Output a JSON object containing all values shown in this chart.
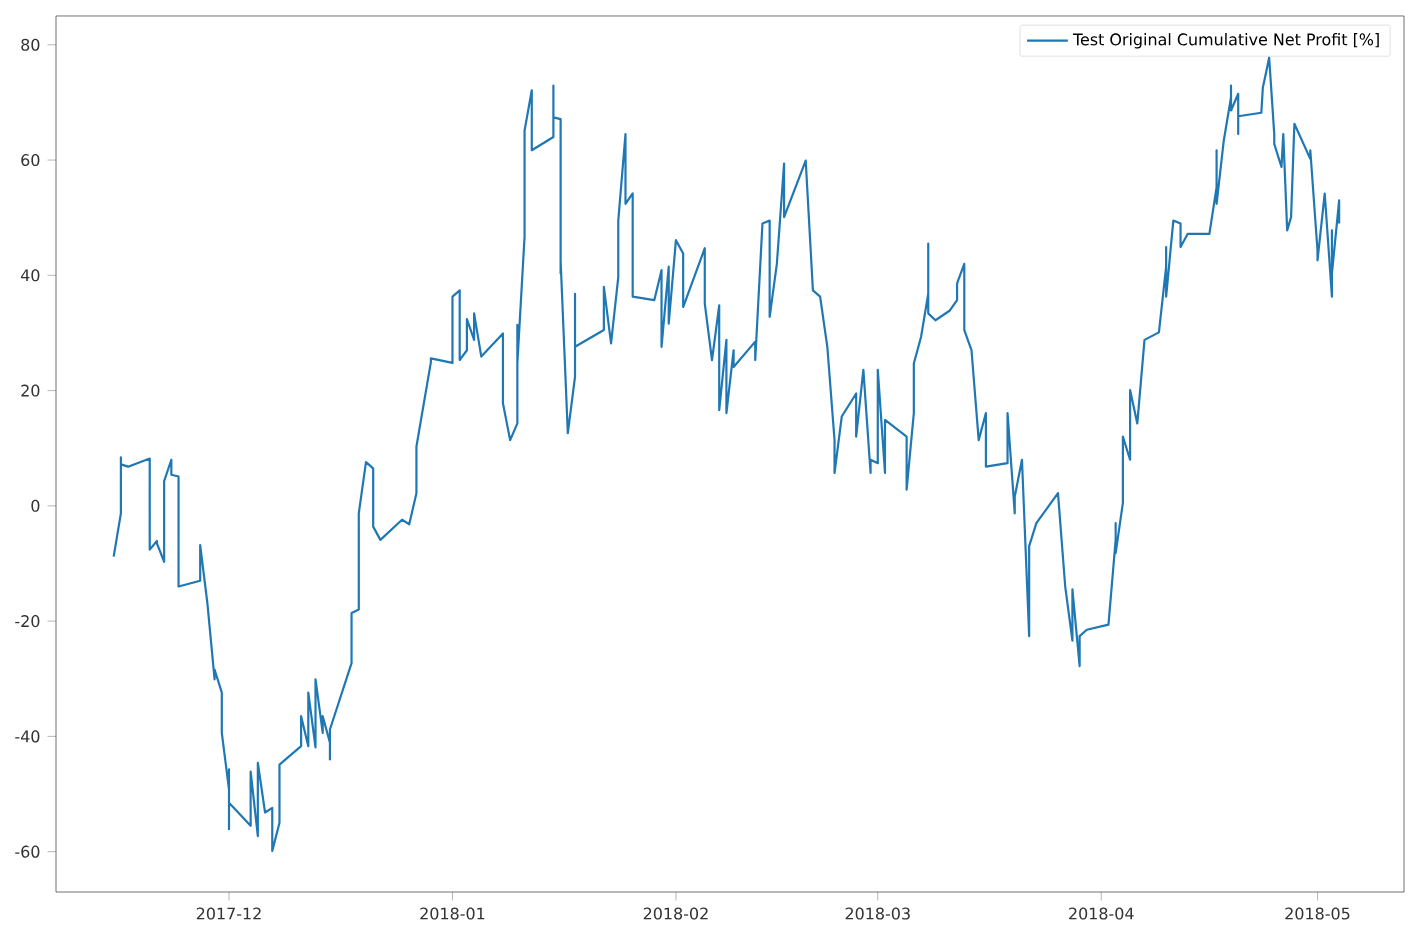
{
  "chart_data": {
    "type": "line",
    "x": [
      "2017-11-15",
      "2017-11-16",
      "2017-11-16",
      "2017-11-16",
      "2017-11-17",
      "2017-11-20",
      "2017-11-20",
      "2017-11-21",
      "2017-11-21",
      "2017-11-22",
      "2017-11-22",
      "2017-11-23",
      "2017-11-23",
      "2017-11-24",
      "2017-11-24",
      "2017-11-27",
      "2017-11-27",
      "2017-11-28",
      "2017-11-29",
      "2017-11-29",
      "2017-11-30",
      "2017-11-30",
      "2017-12-01",
      "2017-12-01",
      "2017-12-01",
      "2017-12-01",
      "2017-12-04",
      "2017-12-04",
      "2017-12-05",
      "2017-12-05",
      "2017-12-06",
      "2017-12-07",
      "2017-12-07",
      "2017-12-08",
      "2017-12-08",
      "2017-12-11",
      "2017-12-11",
      "2017-12-12",
      "2017-12-12",
      "2017-12-13",
      "2017-12-13",
      "2017-12-14",
      "2017-12-14",
      "2017-12-15",
      "2017-12-15",
      "2017-12-15",
      "2017-12-18",
      "2017-12-18",
      "2017-12-19",
      "2017-12-19",
      "2017-12-20",
      "2017-12-21",
      "2017-12-21",
      "2017-12-22",
      "2017-12-25",
      "2017-12-26",
      "2017-12-27",
      "2017-12-27",
      "2017-12-29",
      "2017-12-29",
      "2018-01-01",
      "2018-01-01",
      "2018-01-02",
      "2018-01-02",
      "2018-01-03",
      "2018-01-03",
      "2018-01-04",
      "2018-01-04",
      "2018-01-05",
      "2018-01-08",
      "2018-01-08",
      "2018-01-09",
      "2018-01-10",
      "2018-01-10",
      "2018-01-10",
      "2018-01-11",
      "2018-01-11",
      "2018-01-12",
      "2018-01-12",
      "2018-01-15",
      "2018-01-15",
      "2018-01-15",
      "2018-01-16",
      "2018-01-16",
      "2018-01-16",
      "2018-01-17",
      "2018-01-18",
      "2018-01-18",
      "2018-01-18",
      "2018-01-22",
      "2018-01-22",
      "2018-01-23",
      "2018-01-24",
      "2018-01-24",
      "2018-01-25",
      "2018-01-25",
      "2018-01-26",
      "2018-01-26",
      "2018-01-29",
      "2018-01-30",
      "2018-01-30",
      "2018-01-31",
      "2018-01-31",
      "2018-02-01",
      "2018-02-02",
      "2018-02-02",
      "2018-02-05",
      "2018-02-05",
      "2018-02-06",
      "2018-02-07",
      "2018-02-07",
      "2018-02-08",
      "2018-02-08",
      "2018-02-09",
      "2018-02-09",
      "2018-02-12",
      "2018-02-12",
      "2018-02-13",
      "2018-02-14",
      "2018-02-14",
      "2018-02-15",
      "2018-02-16",
      "2018-02-16",
      "2018-02-19",
      "2018-02-20",
      "2018-02-21",
      "2018-02-22",
      "2018-02-23",
      "2018-02-23",
      "2018-02-24",
      "2018-02-26",
      "2018-02-26",
      "2018-02-27",
      "2018-02-28",
      "2018-02-28",
      "2018-03-01",
      "2018-03-01",
      "2018-03-02",
      "2018-03-02",
      "2018-03-05",
      "2018-03-05",
      "2018-03-06",
      "2018-03-06",
      "2018-03-07",
      "2018-03-08",
      "2018-03-08",
      "2018-03-08",
      "2018-03-09",
      "2018-03-11",
      "2018-03-12",
      "2018-03-12",
      "2018-03-13",
      "2018-03-13",
      "2018-03-14",
      "2018-03-15",
      "2018-03-16",
      "2018-03-16",
      "2018-03-19",
      "2018-03-19",
      "2018-03-20",
      "2018-03-20",
      "2018-03-21",
      "2018-03-22",
      "2018-03-22",
      "2018-03-23",
      "2018-03-26",
      "2018-03-27",
      "2018-03-28",
      "2018-03-28",
      "2018-03-29",
      "2018-03-29",
      "2018-03-30",
      "2018-04-02",
      "2018-04-03",
      "2018-04-03",
      "2018-04-03",
      "2018-04-04",
      "2018-04-04",
      "2018-04-05",
      "2018-04-05",
      "2018-04-06",
      "2018-04-07",
      "2018-04-09",
      "2018-04-10",
      "2018-04-10",
      "2018-04-10",
      "2018-04-11",
      "2018-04-12",
      "2018-04-12",
      "2018-04-13",
      "2018-04-16",
      "2018-04-17",
      "2018-04-17",
      "2018-04-17",
      "2018-04-18",
      "2018-04-19",
      "2018-04-19",
      "2018-04-19",
      "2018-04-20",
      "2018-04-20",
      "2018-04-20",
      "2018-04-23T05:00",
      "2018-04-23T10:00",
      "2018-04-23T22:00",
      "2018-04-24T07:00",
      "2018-04-25",
      "2018-04-25",
      "2018-04-26",
      "2018-04-26T06:00",
      "2018-04-26T19:00",
      "2018-04-27T08:00",
      "2018-04-27T19:00",
      "2018-04-30",
      "2018-04-30",
      "2018-05-01",
      "2018-05-01",
      "2018-05-02",
      "2018-05-03",
      "2018-05-03",
      "2018-05-03",
      "2018-05-04",
      "2018-05-04"
    ],
    "series": [
      {
        "name": "Test Original Cumulative Net Profit [%]",
        "color": "#1f77b4",
        "values": [
          -8.8,
          -1.3,
          8.4,
          7.2,
          6.8,
          8.2,
          -7.6,
          -6.1,
          -6.5,
          -9.7,
          4.3,
          8,
          5.4,
          5.1,
          -14,
          -13,
          -6.8,
          -16.9,
          -30.1,
          -28.4,
          -32.4,
          -39.4,
          -49.2,
          -45.7,
          -56.1,
          -51.5,
          -55.5,
          -46.1,
          -57.3,
          -44.6,
          -53.2,
          -52.4,
          -59.9,
          -55,
          -44.9,
          -41.7,
          -36.5,
          -41.7,
          -32.4,
          -41.9,
          -30.1,
          -39.4,
          -36.5,
          -41.1,
          -44,
          -38.8,
          -27.3,
          -18.6,
          -18,
          -1.3,
          7.6,
          6.5,
          -3.6,
          -5.9,
          -2.4,
          -3.2,
          2.2,
          10.3,
          24.9,
          25.6,
          24.8,
          36.3,
          37.4,
          25.3,
          27,
          32.4,
          28.8,
          33.4,
          25.9,
          29.9,
          17.8,
          11.4,
          14.3,
          31.4,
          24.7,
          46.7,
          65.1,
          72.1,
          61.7,
          64,
          72.9,
          67.4,
          67.1,
          40.3,
          42.6,
          12.6,
          22.4,
          36.8,
          27.6,
          30.5,
          38,
          28.2,
          39.7,
          49.5,
          64.5,
          52.4,
          54.2,
          36.3,
          35.7,
          40.9,
          27.6,
          41.5,
          31.6,
          46.1,
          43.8,
          34.5,
          44.7,
          35.1,
          25.3,
          34.8,
          16.6,
          28.8,
          16.1,
          27,
          24.1,
          28.5,
          25.3,
          49,
          49.5,
          32.8,
          42,
          59.4,
          50.1,
          59.9,
          37.4,
          36.3,
          27.6,
          11.4,
          5.7,
          15.5,
          19.5,
          12,
          23.6,
          5.7,
          8,
          7.4,
          23.6,
          5.7,
          14.9,
          12,
          2.8,
          16.1,
          24.7,
          29.3,
          36.8,
          45.5,
          33.4,
          32.2,
          33.9,
          35.7,
          38.6,
          42,
          30.5,
          27,
          11.4,
          16.1,
          6.8,
          7.4,
          16.1,
          -1.3,
          1.6,
          8,
          -22.6,
          -7,
          -3,
          2.2,
          -14,
          -23.4,
          -14.5,
          -27.8,
          -22.6,
          -21.5,
          -20.6,
          -5.9,
          -3,
          -8.2,
          0.5,
          12,
          8,
          20.1,
          14.3,
          28.8,
          30.1,
          41.5,
          44.9,
          36.3,
          49.5,
          49,
          44.9,
          47.2,
          47.2,
          55.3,
          61.7,
          52.4,
          63.4,
          70.9,
          72.9,
          68.6,
          71.5,
          64.5,
          67.6,
          68.2,
          72.6,
          75.5,
          77.8,
          64.5,
          62.8,
          58.8,
          64.5,
          47.8,
          50.1,
          66.3,
          60.2,
          61.7,
          44.3,
          42.6,
          54.2,
          36.3,
          47.8,
          40.3,
          53,
          49
        ]
      }
    ],
    "xlim": [
      "2017-11-07",
      "2018-05-13"
    ],
    "ylim": [
      -67,
      85
    ],
    "xticks": [
      {
        "value": "2017-12-01",
        "label": "2017-12"
      },
      {
        "value": "2018-01-01",
        "label": "2018-01"
      },
      {
        "value": "2018-02-01",
        "label": "2018-02"
      },
      {
        "value": "2018-03-01",
        "label": "2018-03"
      },
      {
        "value": "2018-04-01",
        "label": "2018-04"
      },
      {
        "value": "2018-05-01",
        "label": "2018-05"
      }
    ],
    "yticks": [
      -60,
      -40,
      -20,
      0,
      20,
      40,
      60,
      80
    ],
    "legend": "top right"
  }
}
